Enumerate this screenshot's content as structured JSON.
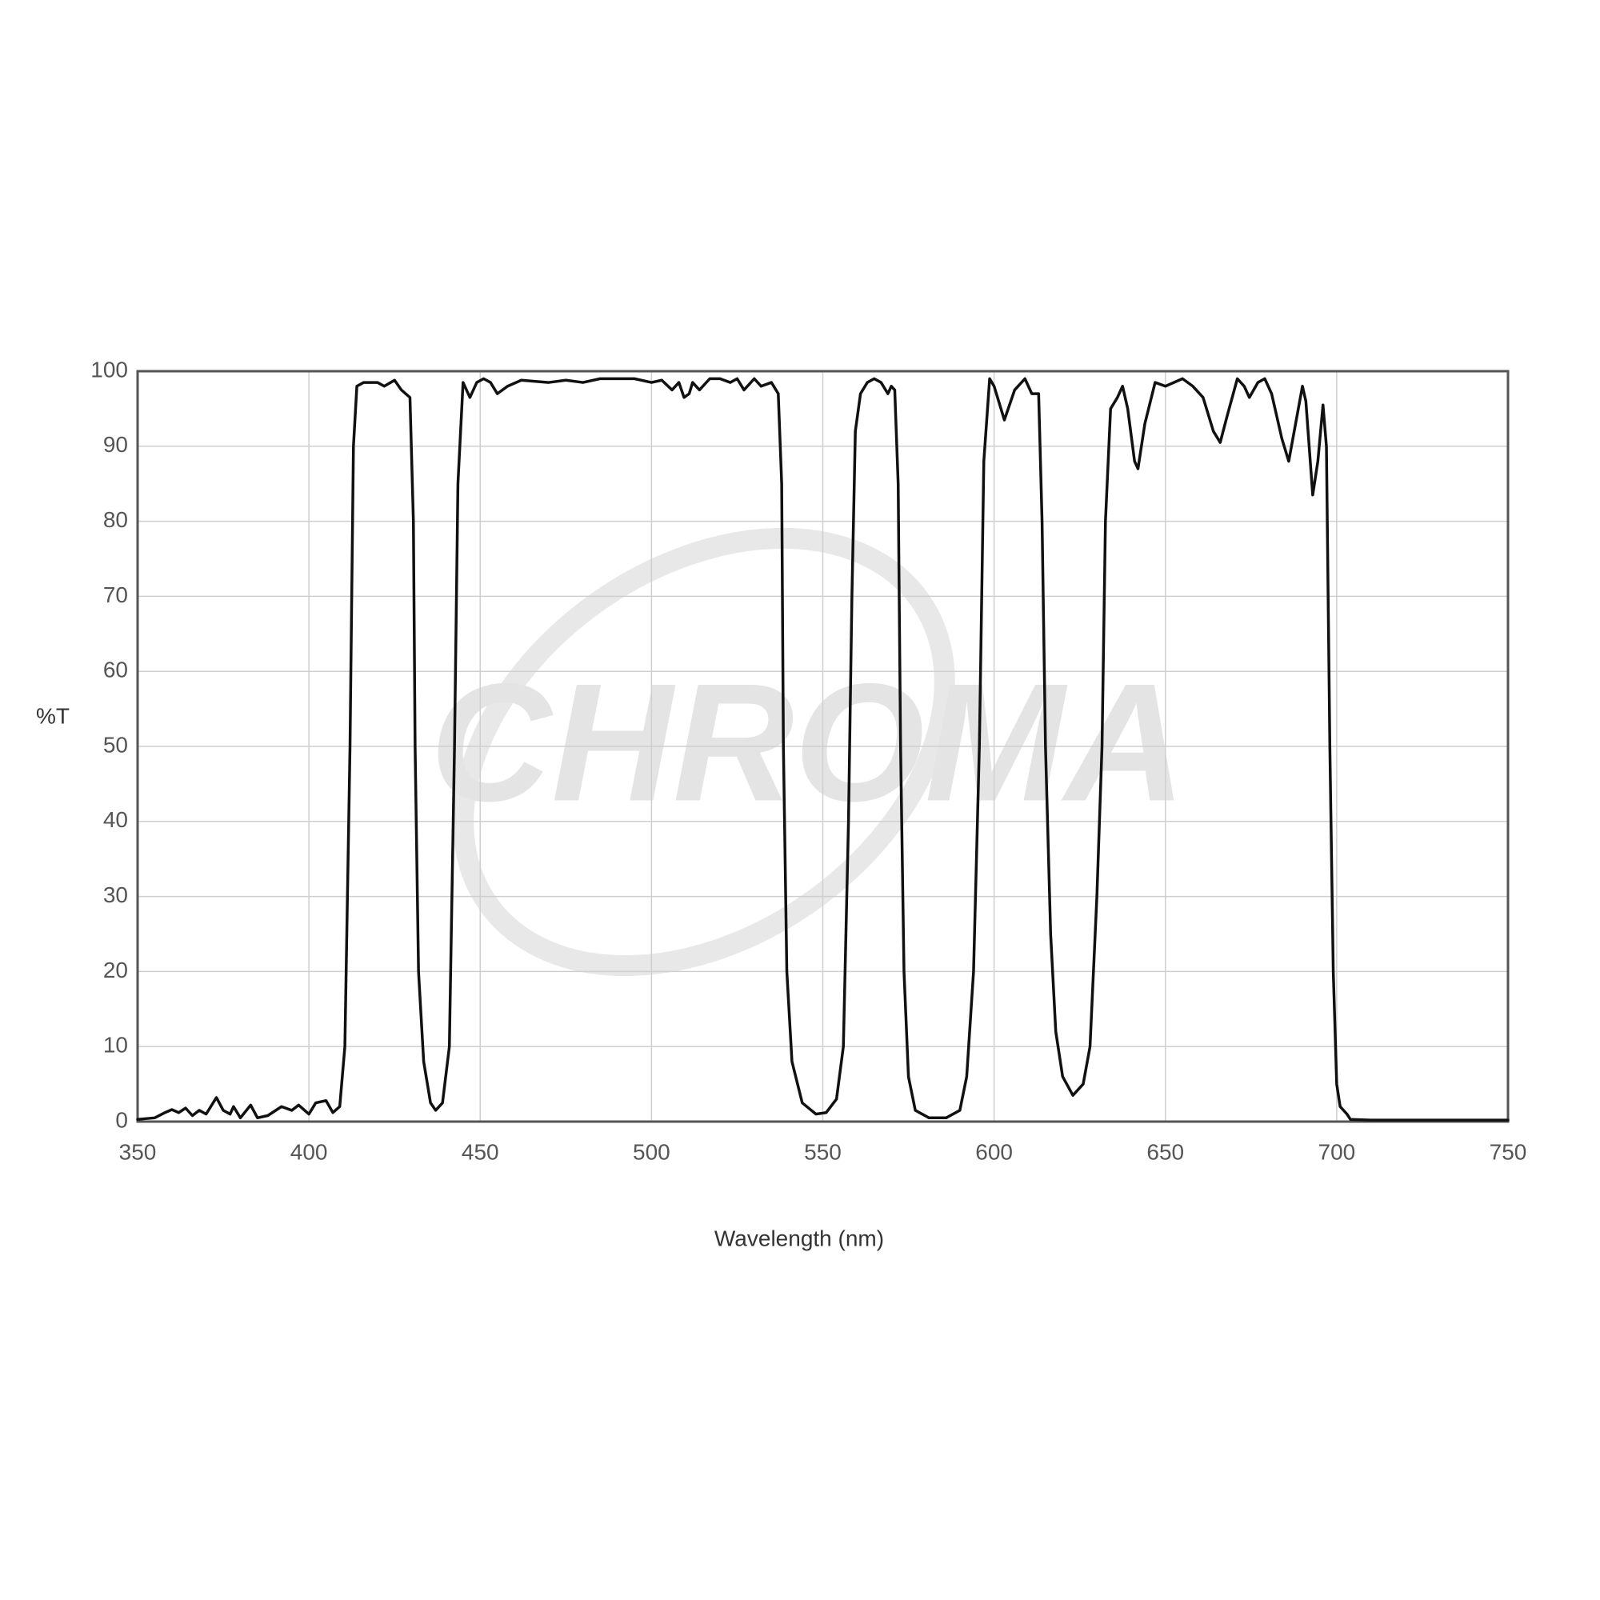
{
  "chart_data": {
    "type": "line",
    "watermark": "CHROMA",
    "y_label": "%T",
    "x_label": "Wavelength (nm)",
    "color": "#111111",
    "grid": true,
    "xlim": [
      350,
      750
    ],
    "xticks": [
      350,
      400,
      450,
      500,
      550,
      600,
      650,
      700,
      750
    ],
    "ylim": [
      0,
      100
    ],
    "yticks": [
      0,
      10,
      20,
      30,
      40,
      50,
      60,
      70,
      80,
      90,
      100
    ],
    "x": [
      350,
      355,
      358,
      360,
      362,
      364,
      366,
      368,
      370,
      373,
      375,
      377,
      378,
      380,
      383,
      385,
      388,
      392,
      395,
      397,
      400,
      402,
      405,
      407,
      409,
      410.5,
      412,
      413,
      414,
      416,
      420,
      422,
      425,
      427,
      429.5,
      430.5,
      431,
      432,
      433.5,
      435.5,
      437,
      439,
      441,
      442.5,
      443.5,
      445,
      447,
      449,
      451,
      453,
      455,
      458,
      462,
      470,
      475,
      480,
      485,
      490,
      495,
      500,
      503,
      506,
      508,
      509.5,
      511,
      512,
      514,
      517,
      520,
      523,
      525,
      527,
      530,
      532,
      535,
      537,
      538,
      538.5,
      539.5,
      541,
      544,
      548,
      551,
      554,
      556,
      557.5,
      558.5,
      559.5,
      561,
      563,
      565,
      567,
      569,
      570,
      571,
      572,
      572.7,
      573.7,
      575,
      577,
      581,
      586,
      590,
      592,
      594,
      595.7,
      597,
      598.7,
      600,
      603,
      606,
      609,
      611,
      613,
      614,
      615,
      616.5,
      618,
      620,
      623,
      626,
      628,
      630,
      631.5,
      632.5,
      634,
      636,
      637.5,
      639,
      641,
      642,
      644,
      647,
      650,
      655,
      658,
      661,
      664,
      666,
      668,
      671,
      673,
      674.5,
      677,
      679,
      681,
      684,
      686,
      688,
      690,
      691,
      693,
      694.5,
      696,
      697,
      698,
      699,
      700,
      701,
      703,
      704,
      710,
      750
    ],
    "values": [
      0.3,
      0.5,
      1.2,
      1.6,
      1.2,
      1.8,
      0.8,
      1.5,
      1.0,
      3.2,
      1.5,
      1.0,
      2.0,
      0.5,
      2.2,
      0.5,
      0.8,
      2.0,
      1.5,
      2.2,
      1.0,
      2.5,
      2.8,
      1.2,
      2,
      10,
      50,
      90,
      98,
      98.5,
      98.5,
      98,
      98.8,
      97.5,
      96.5,
      80,
      50,
      20,
      8,
      2.5,
      1.5,
      2.5,
      10,
      50,
      85,
      98.5,
      96.5,
      98.5,
      99,
      98.5,
      97,
      98,
      98.8,
      98.5,
      98.8,
      98.5,
      99,
      99,
      99,
      98.5,
      98.8,
      97.5,
      98.5,
      96.5,
      97,
      98.5,
      97.5,
      99,
      99,
      98.5,
      99,
      97.5,
      99,
      98,
      98.5,
      97,
      85,
      50,
      20,
      8,
      2.5,
      1,
      1.2,
      3,
      10,
      40,
      70,
      92,
      97,
      98.5,
      99,
      98.5,
      97,
      98,
      97.5,
      85,
      50,
      20,
      6,
      1.5,
      0.5,
      0.5,
      1.5,
      6,
      20,
      50,
      88,
      99,
      98,
      93.5,
      97.5,
      99,
      97,
      97,
      80,
      50,
      25,
      12,
      6,
      3.5,
      5,
      10,
      30,
      50,
      80,
      95,
      96.5,
      98,
      95,
      88,
      87,
      93,
      98.5,
      98,
      99,
      98,
      96.5,
      92,
      90.5,
      94,
      99,
      98,
      96.5,
      98.5,
      99,
      97,
      91,
      88,
      93,
      98,
      96,
      83.5,
      88,
      95.5,
      90,
      50,
      20,
      5,
      2,
      1,
      0.3,
      0.2,
      0.2
    ]
  }
}
